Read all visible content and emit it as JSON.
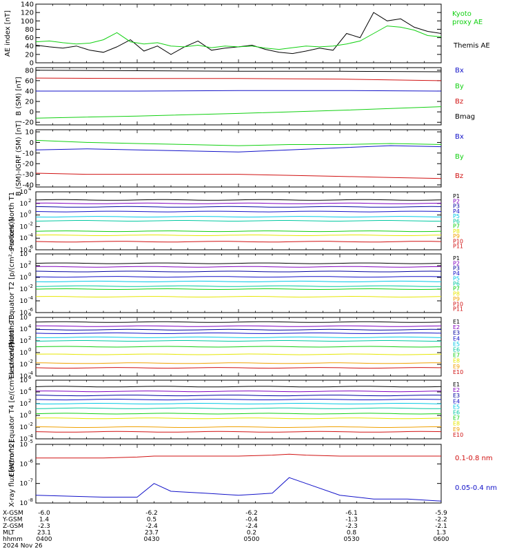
{
  "colors": {
    "black": "#000000",
    "red": "#d01010",
    "green": "#10d010",
    "blue": "#1010c8",
    "cyan": "#00c8e6",
    "teal": "#00c8a0",
    "yellow": "#e6e600",
    "orange": "#f0a000",
    "purple": "#8000c0",
    "darkblue": "#0000a0"
  },
  "chart_data": [
    {
      "type": "line",
      "ylabel": "AE index [nT]",
      "yticks": [
        "140",
        "120",
        "100",
        "80",
        "60",
        "40",
        "20",
        "0"
      ],
      "ylim": [
        0,
        140
      ],
      "legend": [
        {
          "text": "Kyoto",
          "color": "#10d010"
        },
        {
          "text": "proxy AE",
          "color": "#10d010"
        },
        {
          "text": "Themis AE",
          "color": "#000000"
        }
      ],
      "x": [
        0,
        4,
        8,
        12,
        16,
        20,
        24,
        28,
        32,
        36,
        40,
        44,
        48,
        52,
        56,
        60,
        64,
        68,
        72,
        76,
        80,
        84,
        88,
        92,
        96,
        100,
        104,
        108,
        112,
        116,
        120
      ],
      "series": [
        {
          "name": "Themis AE",
          "color": "#000000",
          "values": [
            42,
            38,
            35,
            40,
            30,
            25,
            38,
            55,
            28,
            40,
            20,
            38,
            52,
            30,
            35,
            38,
            42,
            32,
            25,
            22,
            28,
            35,
            30,
            70,
            60,
            120,
            100,
            105,
            85,
            75,
            70
          ]
        },
        {
          "name": "Kyoto proxy AE",
          "color": "#10d010",
          "values": [
            50,
            52,
            48,
            45,
            47,
            55,
            72,
            50,
            45,
            48,
            40,
            38,
            42,
            36,
            40,
            38,
            40,
            35,
            32,
            36,
            40,
            38,
            40,
            45,
            52,
            70,
            88,
            85,
            78,
            65,
            62
          ]
        }
      ]
    },
    {
      "type": "line",
      "ylabel": "B (SM) [nT]",
      "yticks": [
        "80",
        "60",
        "40",
        "20",
        "0",
        "-20"
      ],
      "ylim": [
        -25,
        85
      ],
      "legend": [
        {
          "text": "Bx",
          "color": "#1010c8"
        },
        {
          "text": "By",
          "color": "#10d010"
        },
        {
          "text": "Bz",
          "color": "#d01010"
        },
        {
          "text": "Bmag",
          "color": "#000000"
        }
      ],
      "x": [
        0,
        30,
        60,
        90,
        120
      ],
      "series": [
        {
          "name": "Bmag",
          "color": "#000000",
          "values": [
            80,
            79,
            78,
            78,
            77
          ]
        },
        {
          "name": "Bz",
          "color": "#d01010",
          "values": [
            65,
            64,
            64,
            63,
            60
          ]
        },
        {
          "name": "Bx",
          "color": "#1010c8",
          "values": [
            40,
            40,
            41,
            41,
            40
          ]
        },
        {
          "name": "By",
          "color": "#10d010",
          "values": [
            -12,
            -8,
            -3,
            3,
            10
          ]
        }
      ]
    },
    {
      "type": "line",
      "ylabel": "B (SM)-IGRF (SM) [nT]",
      "yticks": [
        "10",
        "0",
        "-10",
        "-20",
        "-30",
        "-40"
      ],
      "ylim": [
        -42,
        12
      ],
      "legend": [
        {
          "text": "Bx",
          "color": "#1010c8"
        },
        {
          "text": "By",
          "color": "#10d010"
        },
        {
          "text": "Bz",
          "color": "#d01010"
        }
      ],
      "x": [
        0,
        15,
        30,
        45,
        60,
        75,
        90,
        105,
        120
      ],
      "series": [
        {
          "name": "By",
          "color": "#10d010",
          "values": [
            2,
            0,
            -1,
            -2,
            -3,
            -2,
            -2,
            -1,
            -2
          ]
        },
        {
          "name": "Bx",
          "color": "#1010c8",
          "values": [
            -7,
            -6,
            -7,
            -8,
            -9,
            -7,
            -5,
            -3,
            -4
          ]
        },
        {
          "name": "Bz",
          "color": "#d01010",
          "values": [
            -29,
            -30,
            -30,
            -30,
            -30,
            -31,
            -32,
            -33,
            -34
          ]
        }
      ]
    },
    {
      "type": "line",
      "log": true,
      "ylabel": "Protons North T1",
      "ylim_exp": [
        -6,
        4
      ],
      "channels": [
        "P1",
        "P2",
        "P3",
        "P4",
        "P5",
        "P6",
        "P7",
        "P8",
        "P9",
        "P10",
        "P11"
      ],
      "channel_colors": [
        "#000000",
        "#8000c0",
        "#0000a0",
        "#1010c8",
        "#00c8e6",
        "#00c8a0",
        "#10d010",
        "#e6e600",
        "#f0a000",
        "#d01010",
        "#d01010"
      ],
      "levels_exp": [
        2.6,
        2.0,
        1.4,
        0.6,
        -0.3,
        -1.0,
        -2.8,
        -3.5,
        null,
        -4.6,
        null
      ]
    },
    {
      "type": "line",
      "log": true,
      "ylabel": "Protons Equator T2 [p/(cm²-s-sr-keV)]",
      "ylim_exp": [
        -6,
        4
      ],
      "channels": [
        "P1",
        "P2",
        "P3",
        "P4",
        "P5",
        "P6",
        "P7",
        "P8",
        "P9",
        "P10",
        "P11"
      ],
      "channel_colors": [
        "#000000",
        "#8000c0",
        "#0000a0",
        "#1010c8",
        "#00c8e6",
        "#00c8a0",
        "#10d010",
        "#e6e600",
        "#f0a000",
        "#d01010",
        "#d01010"
      ],
      "levels_exp": [
        2.4,
        1.8,
        1.0,
        0.1,
        -0.7,
        -1.5,
        -2.0,
        -3.3,
        null,
        null,
        null
      ]
    },
    {
      "type": "line",
      "log": true,
      "ylabel": "Electrons North T3",
      "ylim_exp": [
        -4,
        6
      ],
      "channels": [
        "E1",
        "E2",
        "E3",
        "E4",
        "E5",
        "E6",
        "E7",
        "E8",
        "E9",
        "E10"
      ],
      "channel_colors": [
        "#000000",
        "#8000c0",
        "#0000a0",
        "#1010c8",
        "#00c8e6",
        "#00c8a0",
        "#10d010",
        "#e6e600",
        "#f0a000",
        "#d01010"
      ],
      "levels_exp": [
        5.2,
        4.5,
        3.9,
        3.3,
        2.6,
        2.0,
        1.0,
        -0.3,
        -1.8,
        -2.6
      ]
    },
    {
      "type": "line",
      "log": true,
      "ylabel": "Electrons Equator T4 [e/(cm²-s-sr-keV)]",
      "ylim_exp": [
        -4,
        6
      ],
      "channels": [
        "E1",
        "E2",
        "E3",
        "E4",
        "E5",
        "E6",
        "E7",
        "E8",
        "E9",
        "E10"
      ],
      "channel_colors": [
        "#000000",
        "#8000c0",
        "#0000a0",
        "#1010c8",
        "#00c8e6",
        "#00c8a0",
        "#10d010",
        "#e6e600",
        "#f0a000",
        "#d01010"
      ],
      "levels_exp": [
        4.9,
        4.1,
        3.4,
        2.7,
        2.0,
        1.2,
        0.3,
        -0.5,
        -2.0,
        -2.8
      ]
    },
    {
      "type": "line",
      "log": true,
      "ylabel": "X-ray flux [W/m^2]",
      "ylim_exp": [
        -8,
        -5
      ],
      "legend": [
        {
          "text": "0.1-0.8 nm",
          "color": "#d01010"
        },
        {
          "text": "0.05-0.4 nm",
          "color": "#1010c8"
        }
      ],
      "x": [
        0,
        20,
        30,
        35,
        40,
        50,
        60,
        70,
        75,
        80,
        90,
        100,
        110,
        120
      ],
      "series": [
        {
          "name": "0.1-0.8 nm",
          "color": "#d01010",
          "values_exp": [
            -5.7,
            -5.7,
            -5.65,
            -5.6,
            -5.6,
            -5.6,
            -5.6,
            -5.55,
            -5.5,
            -5.55,
            -5.6,
            -5.6,
            -5.6,
            -5.6
          ]
        },
        {
          "name": "0.05-0.4 nm",
          "color": "#1010c8",
          "values_exp": [
            -7.6,
            -7.7,
            -7.7,
            -7.0,
            -7.4,
            -7.5,
            -7.6,
            -7.5,
            -6.7,
            -7.0,
            -7.6,
            -7.8,
            -7.8,
            -7.9
          ]
        }
      ]
    }
  ],
  "footer": {
    "rows": [
      {
        "label": "X-GSM",
        "values": [
          "-6.0",
          "-6.2",
          "-6.2",
          "-6.1",
          "-5.9"
        ]
      },
      {
        "label": "Y-GSM",
        "values": [
          "1.4",
          "0.5",
          "-0.4",
          "-1.3",
          "-2.2"
        ]
      },
      {
        "label": "Z-GSM",
        "values": [
          "-2.3",
          "-2.4",
          "-2.4",
          "-2.3",
          "-2.1"
        ]
      },
      {
        "label": "MLT",
        "values": [
          "23.1",
          "23.7",
          "0.2",
          "0.8",
          "1.3"
        ]
      },
      {
        "label": "hhmm",
        "values": [
          "0400",
          "0430",
          "0500",
          "0530",
          "0600"
        ]
      }
    ],
    "date": "2024 Nov 26"
  }
}
